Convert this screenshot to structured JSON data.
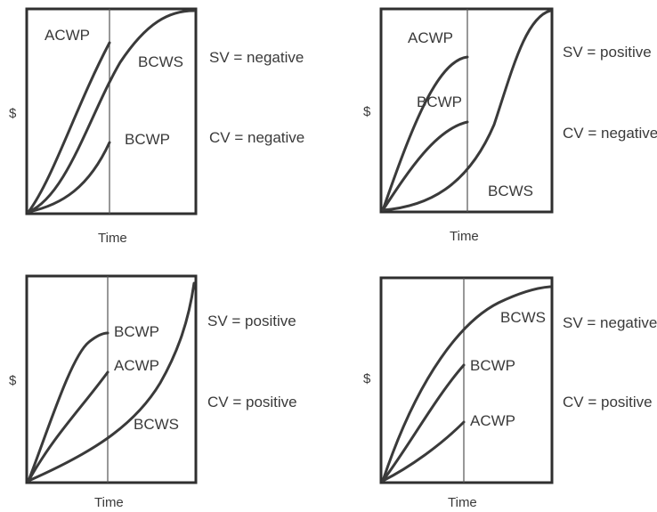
{
  "panels": [
    {
      "labels": {
        "acwp": "ACWP",
        "bcws": "BCWS",
        "bcwp": "BCWP"
      },
      "sv": "SV = negative",
      "cv": "CV = negative",
      "x_axis": "Time",
      "y_axis": "$"
    },
    {
      "labels": {
        "acwp": "ACWP",
        "bcwp": "BCWP",
        "bcws": "BCWS"
      },
      "sv": "SV = positive",
      "cv": "CV = negative",
      "x_axis": "Time",
      "y_axis": "$"
    },
    {
      "labels": {
        "bcwp": "BCWP",
        "acwp": "ACWP",
        "bcws": "BCWS"
      },
      "sv": "SV = positive",
      "cv": "CV = positive",
      "x_axis": "Time",
      "y_axis": "$"
    },
    {
      "labels": {
        "bcws": "BCWS",
        "bcwp": "BCWP",
        "acwp": "ACWP"
      },
      "sv": "SV = negative",
      "cv": "CV = positive",
      "x_axis": "Time",
      "y_axis": "$"
    }
  ]
}
